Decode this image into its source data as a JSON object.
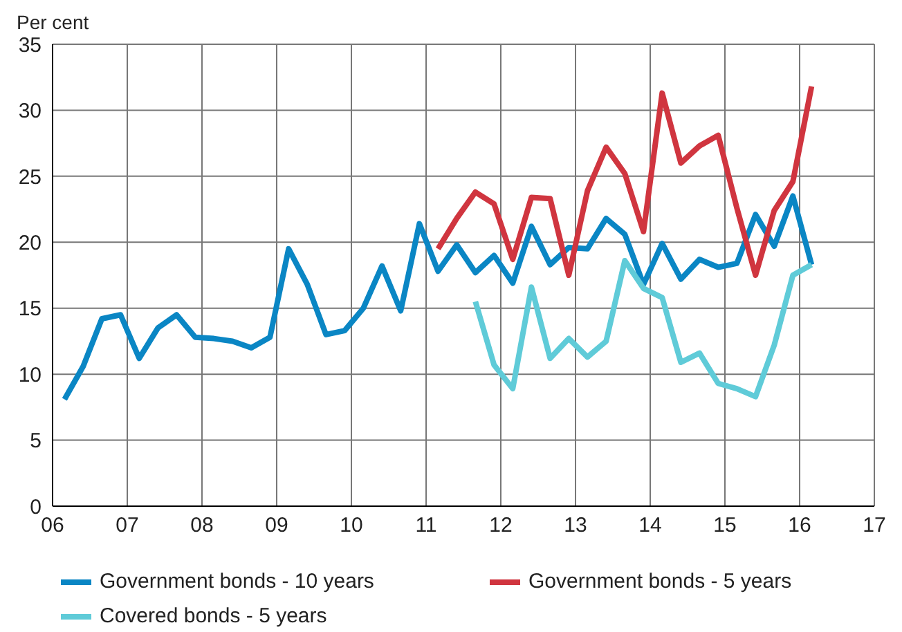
{
  "chart_data": {
    "type": "line",
    "ylabel": "Per cent",
    "x": [
      2006.16,
      2006.41,
      2006.66,
      2006.91,
      2007.16,
      2007.41,
      2007.66,
      2007.91,
      2008.16,
      2008.41,
      2008.66,
      2008.91,
      2009.16,
      2009.41,
      2009.66,
      2009.91,
      2010.16,
      2010.41,
      2010.66,
      2010.91,
      2011.16,
      2011.41,
      2011.66,
      2011.91,
      2012.16,
      2012.41,
      2012.66,
      2012.91,
      2013.16,
      2013.41,
      2013.66,
      2013.91,
      2014.16,
      2014.41,
      2014.66,
      2014.91,
      2015.16,
      2015.41,
      2015.66,
      2015.91,
      2016.16
    ],
    "series": [
      {
        "name": "Government bonds - 10 years",
        "color": "#0a86c4",
        "values": [
          8.1,
          10.6,
          14.2,
          14.5,
          11.2,
          13.5,
          14.5,
          12.8,
          12.7,
          12.5,
          12.0,
          12.8,
          19.5,
          16.8,
          13.0,
          13.3,
          15.0,
          18.2,
          14.8,
          21.4,
          17.8,
          19.8,
          17.7,
          19.0,
          16.9,
          21.2,
          18.3,
          19.6,
          19.5,
          21.8,
          20.6,
          16.8,
          19.9,
          17.2,
          18.7,
          18.1,
          18.4,
          22.1,
          19.7,
          23.5,
          18.3
        ]
      },
      {
        "name": "Government bonds - 5 years",
        "color": "#d0353f",
        "values": [
          null,
          null,
          null,
          null,
          null,
          null,
          null,
          null,
          null,
          null,
          null,
          null,
          null,
          null,
          null,
          null,
          null,
          null,
          null,
          null,
          19.5,
          21.8,
          23.8,
          22.9,
          18.7,
          23.4,
          23.3,
          17.5,
          23.9,
          27.2,
          25.2,
          20.8,
          31.3,
          26.0,
          27.3,
          28.1,
          22.6,
          17.5,
          22.4,
          24.6,
          31.8
        ]
      },
      {
        "name": "Covered bonds - 5 years",
        "color": "#5fcbd8",
        "values": [
          null,
          null,
          null,
          null,
          null,
          null,
          null,
          null,
          null,
          null,
          null,
          null,
          null,
          null,
          null,
          null,
          null,
          null,
          null,
          null,
          null,
          null,
          15.5,
          10.7,
          8.9,
          16.6,
          11.2,
          12.7,
          11.3,
          12.5,
          18.6,
          16.5,
          15.8,
          10.9,
          11.6,
          9.3,
          8.9,
          8.3,
          12.2,
          17.5,
          18.3
        ]
      }
    ],
    "xlim": [
      2006,
      2017
    ],
    "xticks": [
      {
        "value": 2006,
        "label": "06"
      },
      {
        "value": 2007,
        "label": "07"
      },
      {
        "value": 2008,
        "label": "08"
      },
      {
        "value": 2009,
        "label": "09"
      },
      {
        "value": 2010,
        "label": "10"
      },
      {
        "value": 2011,
        "label": "11"
      },
      {
        "value": 2012,
        "label": "12"
      },
      {
        "value": 2013,
        "label": "13"
      },
      {
        "value": 2014,
        "label": "14"
      },
      {
        "value": 2015,
        "label": "15"
      },
      {
        "value": 2016,
        "label": "16"
      },
      {
        "value": 2017,
        "label": "17"
      }
    ],
    "ylim": [
      0,
      35
    ],
    "yticks": [
      0,
      5,
      10,
      15,
      20,
      25,
      30,
      35
    ],
    "grid": true,
    "legend": "bottom",
    "marker": "none",
    "line_style": "solid"
  }
}
